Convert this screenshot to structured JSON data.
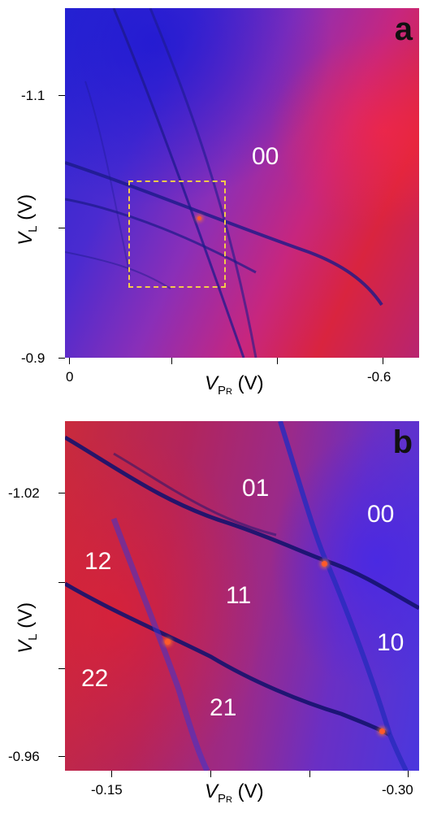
{
  "panel_a": {
    "letter": "a",
    "y_axis": {
      "var": "V",
      "sub": "L",
      "unit": "(V)",
      "ticks": [
        "-1.1",
        "-0.9"
      ]
    },
    "x_axis": {
      "var": "V",
      "sub": "P",
      "subsub": "R",
      "unit": "(V)",
      "ticks": [
        "0",
        "-0.6"
      ]
    },
    "region_labels": [
      "00"
    ]
  },
  "panel_b": {
    "letter": "b",
    "y_axis": {
      "var": "V",
      "sub": "L",
      "unit": "(V)",
      "ticks": [
        "-1.02",
        "-0.96"
      ]
    },
    "x_axis": {
      "var": "V",
      "sub": "P",
      "subsub": "R",
      "unit": "(V)",
      "ticks": [
        "-0.15",
        "-0.30"
      ]
    },
    "region_labels": [
      "01",
      "00",
      "12",
      "11",
      "10",
      "22",
      "21"
    ]
  },
  "colors": {
    "line": "#1a1880",
    "highlight_box": "#f3c94a",
    "region_text": "#ffffff"
  }
}
